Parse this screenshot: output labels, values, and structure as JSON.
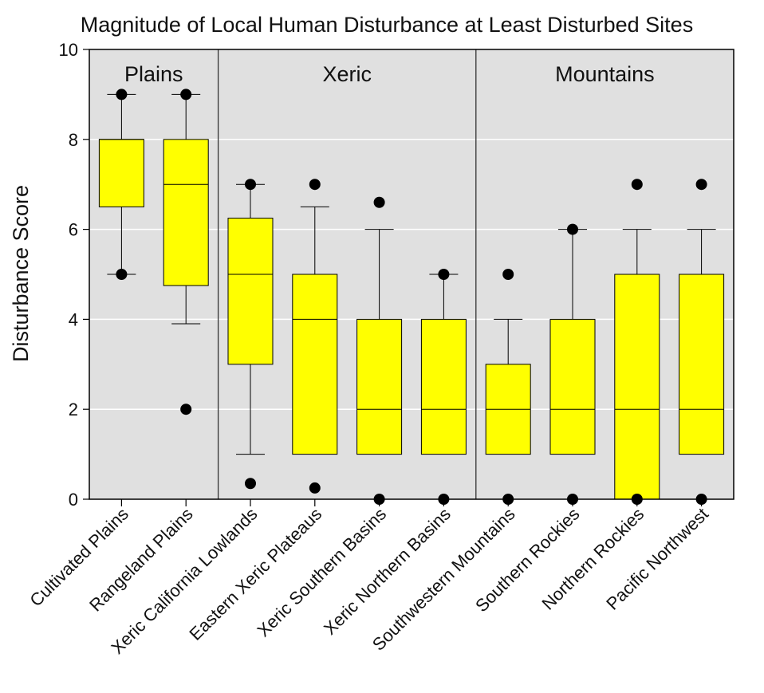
{
  "chart_data": {
    "type": "box",
    "title": "Magnitude of Local Human Disturbance at Least Disturbed Sites",
    "xlabel": "",
    "ylabel": "Disturbance Score",
    "ylim": [
      0,
      10
    ],
    "yticks": [
      "0",
      "2",
      "4",
      "6",
      "8",
      "10"
    ],
    "grid": true,
    "colors": {
      "box_fill": "#ffff00",
      "plot_bg": "#e0e0e0",
      "gridline": "#ffffff"
    },
    "regions": [
      {
        "name": "Plains",
        "first": 0,
        "last": 1
      },
      {
        "name": "Xeric",
        "first": 2,
        "last": 5
      },
      {
        "name": "Mountains",
        "first": 6,
        "last": 9
      }
    ],
    "categories": [
      "Cultivated Plains",
      "Rangeland Plains",
      "Xeric California Lowlands",
      "Eastern Xeric Plateaus",
      "Xeric Southern Basins",
      "Xeric Northern Basins",
      "Southwestern Mountains",
      "Southern Rockies",
      "Northern Rockies",
      "Pacific Northwest"
    ],
    "boxes": [
      {
        "whisker_low": 5,
        "q1": 6.5,
        "median": 8,
        "q3": 8,
        "whisker_high": 9,
        "outliers": [
          5,
          9
        ]
      },
      {
        "whisker_low": 3.9,
        "q1": 4.75,
        "median": 7,
        "q3": 8,
        "whisker_high": 9,
        "outliers": [
          2,
          9
        ]
      },
      {
        "whisker_low": 1,
        "q1": 3,
        "median": 5,
        "q3": 6.25,
        "whisker_high": 7,
        "outliers": [
          0.35,
          7
        ]
      },
      {
        "whisker_low": 1,
        "q1": 1,
        "median": 4,
        "q3": 5,
        "whisker_high": 6.5,
        "outliers": [
          0.25,
          7
        ]
      },
      {
        "whisker_low": 1,
        "q1": 1,
        "median": 2,
        "q3": 4,
        "whisker_high": 6,
        "outliers": [
          0,
          6.6
        ]
      },
      {
        "whisker_low": 1,
        "q1": 1,
        "median": 2,
        "q3": 4,
        "whisker_high": 5,
        "outliers": [
          0,
          5
        ]
      },
      {
        "whisker_low": 1,
        "q1": 1,
        "median": 2,
        "q3": 3,
        "whisker_high": 4,
        "outliers": [
          0,
          5
        ]
      },
      {
        "whisker_low": 1,
        "q1": 1,
        "median": 2,
        "q3": 4,
        "whisker_high": 6,
        "outliers": [
          0,
          6
        ]
      },
      {
        "whisker_low": 0,
        "q1": 0,
        "median": 2,
        "q3": 5,
        "whisker_high": 6,
        "outliers": [
          0,
          7
        ]
      },
      {
        "whisker_low": 1,
        "q1": 1,
        "median": 2,
        "q3": 5,
        "whisker_high": 6,
        "outliers": [
          0,
          7
        ]
      }
    ]
  }
}
